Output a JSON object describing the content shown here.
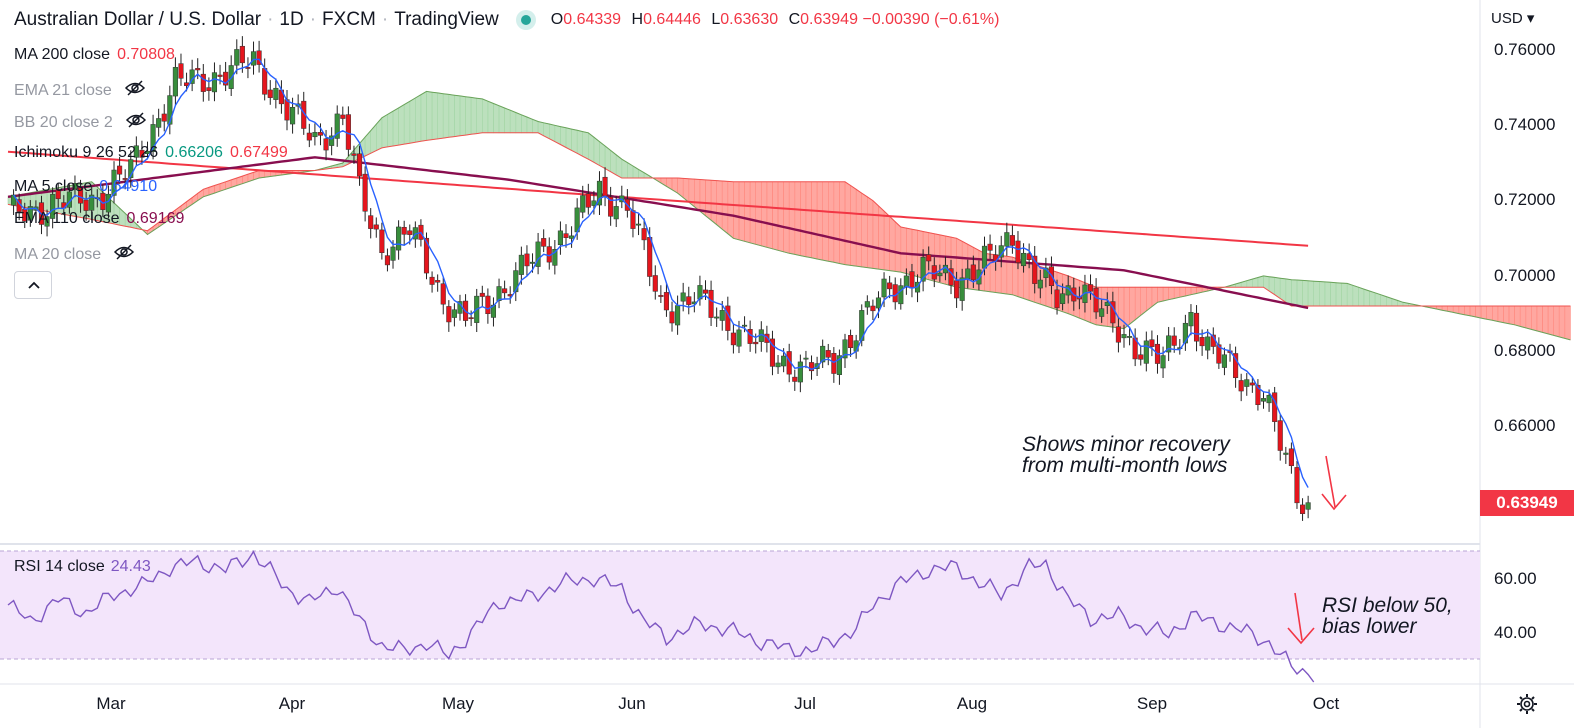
{
  "header": {
    "symbol": "Australian Dollar / U.S. Dollar",
    "interval": "1D",
    "exchange": "FXCM",
    "platform": "TradingView",
    "ohlc": {
      "o_label": "O",
      "o": "0.64339",
      "h_label": "H",
      "h": "0.64446",
      "l_label": "L",
      "l": "0.63630",
      "c_label": "C",
      "c": "0.63949",
      "change": "−0.00390 (−0.61%)"
    }
  },
  "legend": {
    "ma200": {
      "name": "MA 200 close",
      "value": "0.70808",
      "color": "#f23645"
    },
    "ema21": {
      "name": "EMA 21 close"
    },
    "bb": {
      "name": "BB 20 close 2"
    },
    "ichimoku": {
      "name": "Ichimoku 9 26 52 26",
      "value1": "0.66206",
      "value2": "0.67499",
      "color1": "#089981",
      "color2": "#f23645"
    },
    "ma5": {
      "name": "MA 5 close",
      "value": "0.64910",
      "color": "#2962ff"
    },
    "ema110": {
      "name": "EMA 110 close",
      "value": "0.69169",
      "color": "#880e4f"
    },
    "ma20": {
      "name": "MA 20 close"
    },
    "eye_icon": "eye-off-icon"
  },
  "price_axis": {
    "currency": "USD",
    "labels": [
      "0.76000",
      "0.74000",
      "0.72000",
      "0.70000",
      "0.68000",
      "0.66000"
    ],
    "current_price": "0.63949",
    "current_price_color": "#f23645"
  },
  "rsi": {
    "name": "RSI 14 close",
    "value": "24.43",
    "axis_labels": [
      "60.00",
      "40.00"
    ],
    "color": "#7e57c2",
    "band_color": "#f3e5fb",
    "upper": 70,
    "lower": 30
  },
  "time_axis": {
    "months": [
      "Mar",
      "Apr",
      "May",
      "Jun",
      "Jul",
      "Aug",
      "Sep",
      "Oct"
    ]
  },
  "annotations": {
    "price_note_line1": "Shows minor recovery",
    "price_note_line2": "from multi-month lows",
    "rsi_note_line1": "RSI below 50,",
    "rsi_note_line2": "bias lower",
    "arrow_color": "#f23645"
  },
  "chart_data": {
    "type": "candlestick",
    "title": "Australian Dollar / U.S. Dollar · 1D · FXCM",
    "price_range": [
      0.632,
      0.764
    ],
    "rsi_range": [
      24,
      72
    ],
    "colors": {
      "up": "#388e3c",
      "down": "#e5151d",
      "ma200": "#f23645",
      "ema110": "#880e4f",
      "ma5": "#2962ff",
      "kumo_bull": "#a5d6a7",
      "kumo_bear": "#ff8a80",
      "rsi": "#7e57c2"
    },
    "key_prices": {
      "0": 0.716,
      "8": 0.719,
      "16": 0.721,
      "22": 0.728,
      "30": 0.751,
      "37": 0.753,
      "44": 0.757,
      "50": 0.744,
      "55": 0.736,
      "60": 0.742,
      "63": 0.722,
      "67": 0.707,
      "72": 0.712,
      "78": 0.694,
      "82": 0.688,
      "88": 0.696,
      "94": 0.704,
      "100": 0.712,
      "106": 0.722,
      "111": 0.719,
      "117": 0.692,
      "123": 0.694,
      "128": 0.689,
      "133": 0.683,
      "138": 0.678,
      "143": 0.675,
      "148": 0.678,
      "153": 0.688,
      "158": 0.697,
      "164": 0.701,
      "170": 0.699,
      "176": 0.704,
      "180": 0.711,
      "184": 0.7,
      "188": 0.694,
      "192": 0.698,
      "197": 0.688,
      "202": 0.682,
      "207": 0.677,
      "212": 0.69,
      "215": 0.68,
      "220": 0.675,
      "225": 0.668,
      "228": 0.655,
      "231": 0.643,
      "233": 0.639
    },
    "ma200_line": [
      [
        0,
        0.733
      ],
      [
        100,
        0.722
      ],
      [
        233,
        0.708
      ]
    ],
    "ema110_line": [
      [
        0,
        0.721
      ],
      [
        55,
        0.7315
      ],
      [
        90,
        0.7255
      ],
      [
        130,
        0.716
      ],
      [
        160,
        0.706
      ],
      [
        200,
        0.7015
      ],
      [
        233,
        0.6915
      ]
    ],
    "ichimoku": {
      "span_a": [
        [
          0,
          0.721
        ],
        [
          15,
          0.725
        ],
        [
          20,
          0.718
        ],
        [
          25,
          0.711
        ],
        [
          35,
          0.721
        ],
        [
          45,
          0.726
        ],
        [
          55,
          0.728
        ],
        [
          60,
          0.73
        ],
        [
          67,
          0.742
        ],
        [
          75,
          0.749
        ],
        [
          85,
          0.747
        ],
        [
          95,
          0.741
        ],
        [
          104,
          0.738
        ],
        [
          110,
          0.731
        ],
        [
          120,
          0.722
        ],
        [
          130,
          0.71
        ],
        [
          140,
          0.706
        ],
        [
          150,
          0.703
        ],
        [
          160,
          0.701
        ],
        [
          170,
          0.697
        ],
        [
          180,
          0.695
        ],
        [
          190,
          0.69
        ],
        [
          195,
          0.687
        ],
        [
          200,
          0.686
        ],
        [
          206,
          0.693
        ],
        [
          212,
          0.695
        ],
        [
          218,
          0.697
        ],
        [
          225,
          0.7
        ],
        [
          230,
          0.699
        ],
        [
          240,
          0.698
        ],
        [
          250,
          0.693
        ],
        [
          260,
          0.69
        ],
        [
          270,
          0.687
        ],
        [
          280,
          0.683
        ]
      ],
      "span_b": [
        [
          0,
          0.719
        ],
        [
          15,
          0.715
        ],
        [
          25,
          0.712
        ],
        [
          35,
          0.723
        ],
        [
          45,
          0.728
        ],
        [
          55,
          0.728
        ],
        [
          60,
          0.729
        ],
        [
          67,
          0.734
        ],
        [
          75,
          0.736
        ],
        [
          85,
          0.738
        ],
        [
          95,
          0.738
        ],
        [
          104,
          0.731
        ],
        [
          110,
          0.726
        ],
        [
          120,
          0.726
        ],
        [
          130,
          0.725
        ],
        [
          140,
          0.725
        ],
        [
          150,
          0.725
        ],
        [
          155,
          0.72
        ],
        [
          160,
          0.713
        ],
        [
          170,
          0.71
        ],
        [
          175,
          0.706
        ],
        [
          180,
          0.705
        ],
        [
          190,
          0.7
        ],
        [
          195,
          0.697
        ],
        [
          200,
          0.697
        ],
        [
          206,
          0.697
        ],
        [
          212,
          0.697
        ],
        [
          218,
          0.697
        ],
        [
          225,
          0.697
        ],
        [
          230,
          0.692
        ],
        [
          240,
          0.692
        ],
        [
          250,
          0.692
        ],
        [
          260,
          0.692
        ],
        [
          270,
          0.692
        ],
        [
          280,
          0.692
        ]
      ]
    },
    "rsi_key": {
      "0": 50,
      "4": 44,
      "9": 52,
      "14": 47,
      "19": 54,
      "24": 57,
      "29": 64,
      "34": 66,
      "39": 63,
      "44": 69,
      "50": 56,
      "54": 51,
      "59": 57,
      "63": 44,
      "67": 35,
      "71": 33,
      "75": 36,
      "79": 31,
      "84": 42,
      "88": 51,
      "94": 53,
      "99": 58,
      "105": 60,
      "110": 56,
      "114": 44,
      "118": 38,
      "124": 43,
      "129": 41,
      "134": 37,
      "139": 34,
      "144": 33,
      "148": 37,
      "152": 41,
      "155": 50,
      "159": 57,
      "165": 63,
      "170": 64,
      "174": 58,
      "178": 54,
      "183": 64,
      "186": 65,
      "190": 52,
      "194": 45,
      "199": 46,
      "203": 42,
      "208": 39,
      "212": 46,
      "217": 43,
      "222": 40,
      "226": 36,
      "230": 27,
      "234": 24.43
    }
  }
}
